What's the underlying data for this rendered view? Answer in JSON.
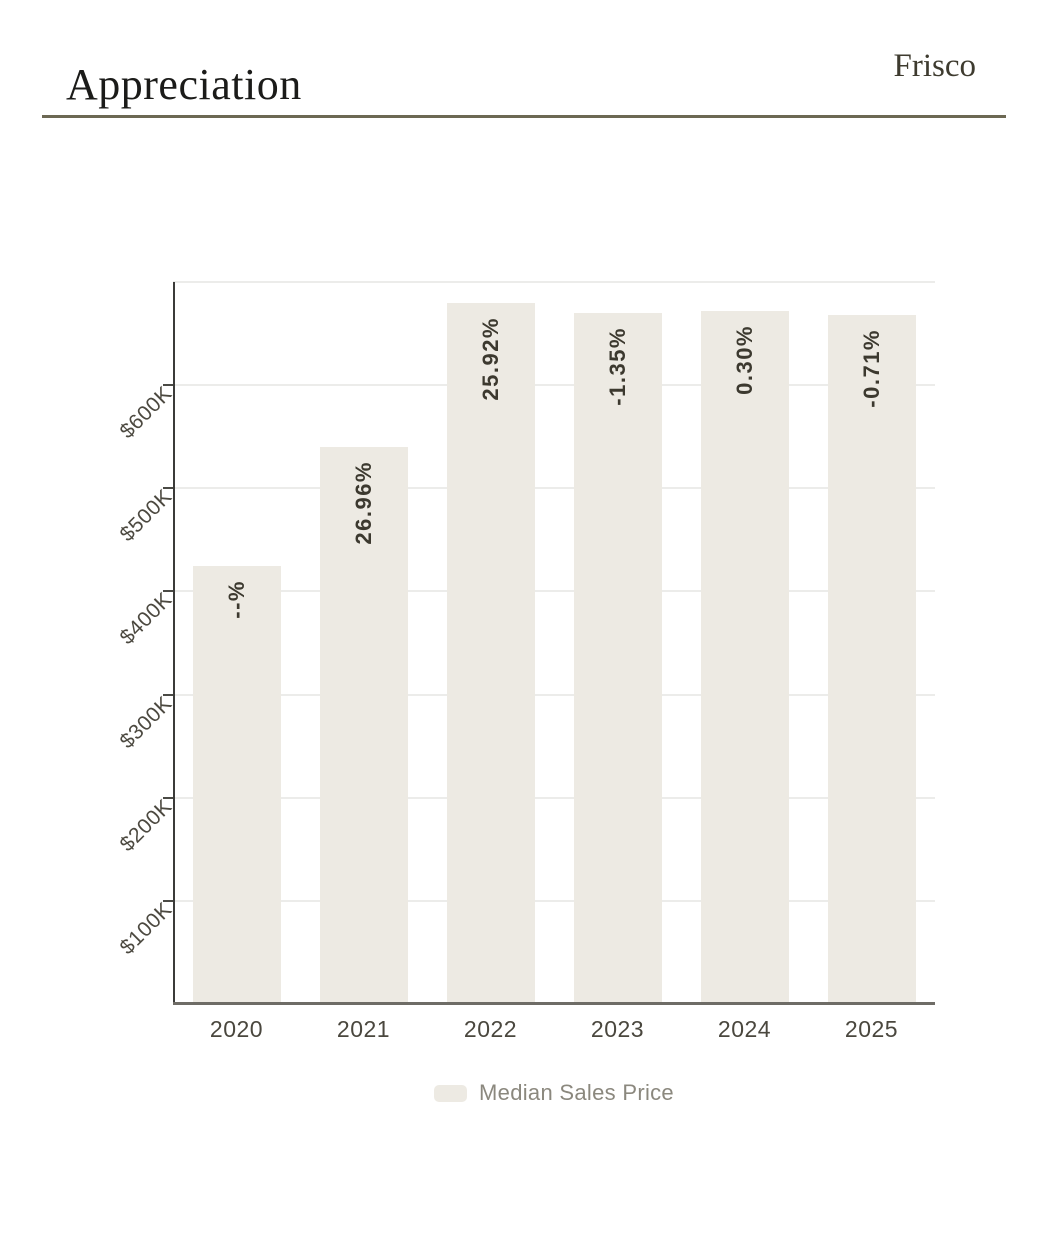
{
  "header": {
    "title": "Appreciation",
    "location": "Frisco"
  },
  "chart_data": {
    "type": "bar",
    "title": "Appreciation",
    "categories": [
      "2020",
      "2021",
      "2022",
      "2023",
      "2024",
      "2025"
    ],
    "series": [
      {
        "name": "Median Sales Price",
        "values": [
          425000,
          539600,
          679500,
          670300,
          672300,
          667600
        ]
      }
    ],
    "bar_labels": [
      "--%",
      "26.96%",
      "25.92%",
      "-1.35%",
      "0.30%",
      "-0.71%"
    ],
    "yticks": [
      {
        "value": 100000,
        "label": "$100K"
      },
      {
        "value": 200000,
        "label": "$200K"
      },
      {
        "value": 300000,
        "label": "$300K"
      },
      {
        "value": 400000,
        "label": "$400K"
      },
      {
        "value": 500000,
        "label": "$500K"
      },
      {
        "value": 600000,
        "label": "$600K"
      }
    ],
    "gridlines": [
      100000,
      200000,
      300000,
      400000,
      500000,
      600000,
      700000
    ],
    "ylim": [
      0,
      700000
    ],
    "xlabel": "",
    "ylabel": "",
    "grid": true,
    "legend_position": "bottom",
    "colors": {
      "bar_fill": "#EDEAE3",
      "bar_label": "#3C392F",
      "axis_label": "#4C4940",
      "x_tick_label": "#4A473E",
      "x_axis_line": "#6E6C66",
      "y_axis_line": "#3B3B39",
      "gridline": "#ECECEA",
      "tick_mark": "#4A4A45",
      "legend_text": "#8B887E",
      "divider": "#6C6853",
      "title_text": "#1B1B19",
      "location_text": "#3E3B2F"
    }
  }
}
